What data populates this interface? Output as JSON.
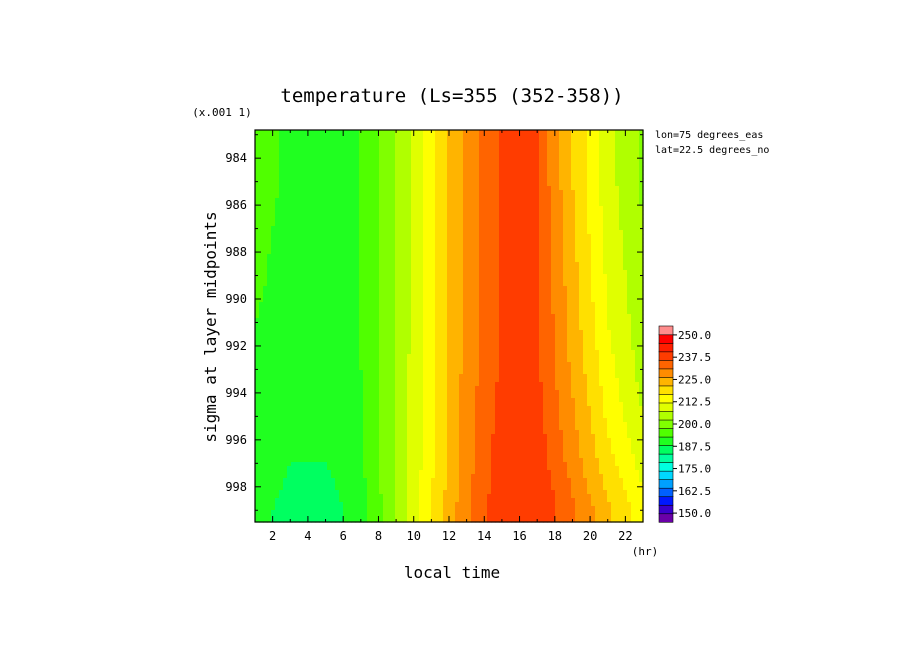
{
  "chart_data": {
    "type": "heatmap",
    "title": "temperature (Ls=355 (352-358))",
    "xlabel": "local time",
    "x_unit": "(hr)",
    "ylabel": "sigma at layer midpoints",
    "y_scale_note": "(x.001 1)",
    "annotations": [
      "lon=75 degrees_eas",
      "lat=22.5 degrees_no"
    ],
    "xlim": [
      1,
      23
    ],
    "ylim": [
      982.8,
      999.5
    ],
    "y_inverted": true,
    "x_ticks": [
      2,
      4,
      6,
      8,
      10,
      12,
      14,
      16,
      18,
      20,
      22
    ],
    "x_tick_labels": [
      "2",
      "4",
      "6",
      "8",
      "10",
      "12",
      "14",
      "16",
      "18",
      "20",
      "22"
    ],
    "y_ticks": [
      984,
      986,
      988,
      990,
      992,
      994,
      996,
      998
    ],
    "y_tick_labels": [
      "984",
      "986",
      "988",
      "990",
      "992",
      "994",
      "996",
      "998"
    ],
    "x": [
      1,
      3,
      5,
      7,
      9,
      11,
      13,
      15,
      17,
      19,
      21,
      23
    ],
    "y": [
      983,
      985,
      987,
      989,
      991,
      993,
      995,
      997,
      999
    ],
    "values": [
      [
        197,
        194,
        193,
        195,
        205,
        218,
        232,
        241,
        240,
        225,
        212,
        204
      ],
      [
        197,
        194,
        193,
        195,
        205,
        218,
        232,
        241,
        240,
        225,
        212,
        204
      ],
      [
        196,
        194,
        193,
        195,
        205,
        218,
        232,
        241,
        240,
        226,
        213,
        205
      ],
      [
        196,
        193,
        193,
        195,
        205,
        218,
        232,
        241,
        240,
        227,
        214,
        206
      ],
      [
        195,
        193,
        192,
        195,
        205,
        218,
        232,
        241,
        241,
        228,
        215,
        207
      ],
      [
        194,
        192,
        192,
        195,
        205,
        219,
        232,
        241,
        241,
        229,
        217,
        208
      ],
      [
        193,
        191,
        191,
        194,
        205,
        219,
        233,
        242,
        242,
        231,
        219,
        210
      ],
      [
        192,
        190,
        190,
        194,
        205,
        219,
        233,
        243,
        243,
        233,
        222,
        213
      ],
      [
        191,
        189,
        187,
        193,
        205,
        220,
        234,
        244,
        245,
        236,
        226,
        217
      ]
    ],
    "colorbar": {
      "labels": [
        "250.0",
        "237.5",
        "225.0",
        "212.5",
        "200.0",
        "187.5",
        "175.0",
        "162.5",
        "150.0"
      ],
      "levels_low_to_high": [
        145,
        150,
        155,
        160,
        165,
        170,
        175,
        180,
        185,
        190,
        195,
        200,
        205,
        210,
        215,
        220,
        225,
        230,
        235,
        240,
        245,
        250,
        255
      ],
      "colors_low_to_high": [
        "#6a00a8",
        "#3a00cc",
        "#0018ff",
        "#0060ff",
        "#00a0ff",
        "#00d8ff",
        "#00ffe0",
        "#00ffa0",
        "#00ff60",
        "#20ff20",
        "#50ff00",
        "#80ff00",
        "#b0ff00",
        "#e0ff00",
        "#ffff00",
        "#ffe000",
        "#ffb400",
        "#ff8c00",
        "#ff6400",
        "#ff3c00",
        "#ff1e00",
        "#ff0000",
        "#ff8c8c"
      ]
    }
  }
}
